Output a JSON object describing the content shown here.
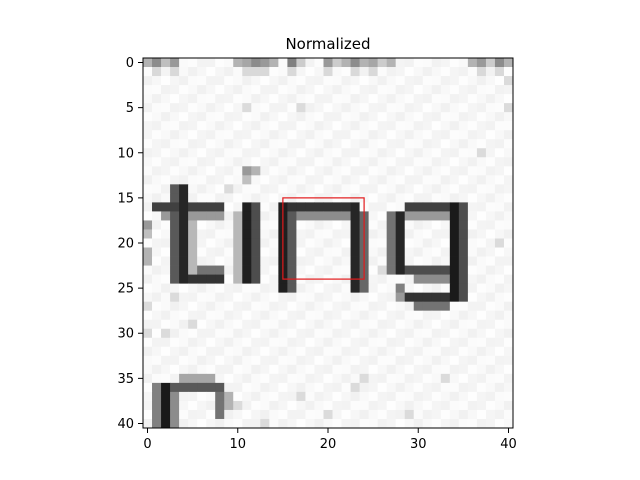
{
  "chart_data": {
    "type": "heatmap",
    "title": "Normalized",
    "xlabel": "",
    "ylabel": "",
    "grid_size": [
      41,
      41
    ],
    "xlim": [
      -0.5,
      40.5
    ],
    "ylim": [
      40.5,
      -0.5
    ],
    "x_ticks": [
      0,
      10,
      20,
      30,
      40
    ],
    "y_ticks": [
      0,
      5,
      10,
      15,
      20,
      25,
      30,
      35,
      40
    ],
    "colormap": "gray",
    "grid": false,
    "highlight_box": {
      "x0": 15,
      "y0": 15,
      "x1": 24,
      "y1": 24,
      "color": "#e31a1c"
    },
    "image_content": "handwritten letters 'ting' with partial 'n' below"
  }
}
